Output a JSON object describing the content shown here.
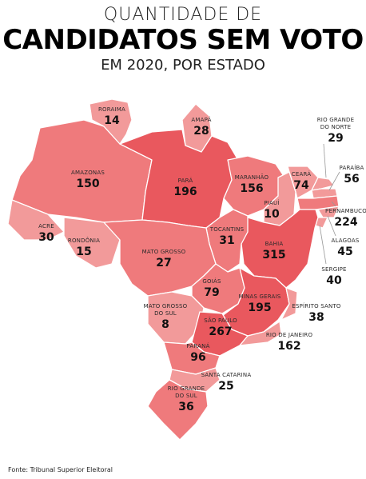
{
  "title": {
    "line1": "QUANTIDADE DE",
    "line2": "CANDIDATOS SEM VOTO",
    "line3": "EM 2020, POR ESTADO"
  },
  "source": "Fonte: Tribunal Superior Eleitoral",
  "colors": {
    "light": "#f29a9a",
    "medium": "#ef7a7c",
    "dark": "#e9585e"
  },
  "states": [
    {
      "id": "rr",
      "name": "RORAIMA",
      "value": "14"
    },
    {
      "id": "ap",
      "name": "AMAPÁ",
      "value": "28"
    },
    {
      "id": "am",
      "name": "AMAZONAS",
      "value": "150"
    },
    {
      "id": "pa",
      "name": "PARÁ",
      "value": "196"
    },
    {
      "id": "ma",
      "name": "MARANHÃO",
      "value": "156"
    },
    {
      "id": "ce",
      "name": "CEARÁ",
      "value": "74"
    },
    {
      "id": "rn",
      "name": "RIO GRANDE DO NORTE",
      "value": "29"
    },
    {
      "id": "pb",
      "name": "PARAÍBA",
      "value": "56"
    },
    {
      "id": "pe",
      "name": "PERNAMBUCO",
      "value": "224"
    },
    {
      "id": "al",
      "name": "ALAGOAS",
      "value": "45"
    },
    {
      "id": "se",
      "name": "SERGIPE",
      "value": "40"
    },
    {
      "id": "pi",
      "name": "PIAUÍ",
      "value": "10"
    },
    {
      "id": "ac",
      "name": "ACRE",
      "value": "30"
    },
    {
      "id": "ro",
      "name": "RONDÔNIA",
      "value": "15"
    },
    {
      "id": "mt",
      "name": "MATO GROSSO",
      "value": "27"
    },
    {
      "id": "to",
      "name": "TOCANTINS",
      "value": "31"
    },
    {
      "id": "ba",
      "name": "BAHIA",
      "value": "315"
    },
    {
      "id": "go",
      "name": "GOIÁS",
      "value": "79"
    },
    {
      "id": "mg",
      "name": "MINAS GERAIS",
      "value": "195"
    },
    {
      "id": "es",
      "name": "ESPÍRITO SANTO",
      "value": "38"
    },
    {
      "id": "ms",
      "name": "MATO GROSSO DO SUL",
      "value": "8"
    },
    {
      "id": "sp",
      "name": "SÃO PAULO",
      "value": "267"
    },
    {
      "id": "rj",
      "name": "RIO DE JANEIRO",
      "value": "162"
    },
    {
      "id": "pr",
      "name": "PARANÁ",
      "value": "96"
    },
    {
      "id": "sc",
      "name": "SANTA CATARINA",
      "value": "25"
    },
    {
      "id": "rs",
      "name": "RIO GRANDE DO SUL",
      "value": "36"
    }
  ]
}
